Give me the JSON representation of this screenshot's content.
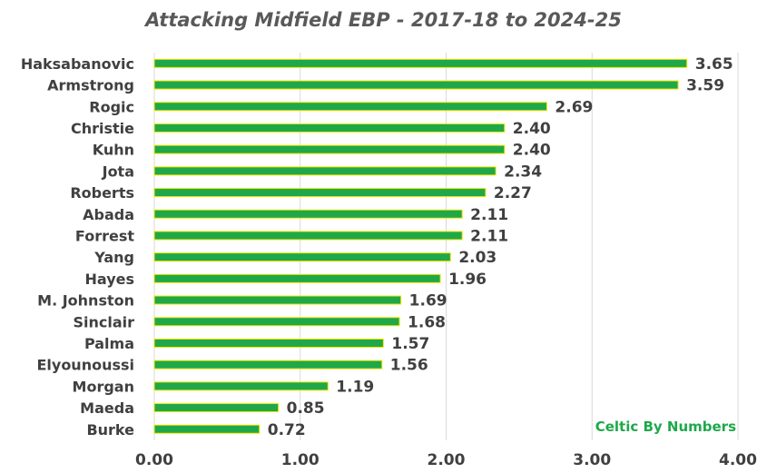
{
  "chart_data": {
    "type": "bar",
    "orientation": "horizontal",
    "title": "Attacking Midfield EBP - 2017-18 to 2024-25",
    "categories": [
      "Haksabanovic",
      "Armstrong",
      "Rogic",
      "Christie",
      "Kuhn",
      "Jota",
      "Roberts",
      "Abada",
      "Forrest",
      "Yang",
      "Hayes",
      "M. Johnston",
      "Sinclair",
      "Palma",
      "Elyounoussi",
      "Morgan",
      "Maeda",
      "Burke"
    ],
    "values": [
      3.65,
      3.59,
      2.69,
      2.4,
      2.4,
      2.34,
      2.27,
      2.11,
      2.11,
      2.03,
      1.96,
      1.69,
      1.68,
      1.57,
      1.56,
      1.19,
      0.85,
      0.72
    ],
    "data_labels": [
      "3.65",
      "3.59",
      "2.69",
      "2.40",
      "2.40",
      "2.34",
      "2.27",
      "2.11",
      "2.11",
      "2.03",
      "1.96",
      "1.69",
      "1.68",
      "1.57",
      "1.56",
      "1.19",
      "0.85",
      "0.72"
    ],
    "xticks": [
      "0.00",
      "1.00",
      "2.00",
      "3.00",
      "4.00"
    ],
    "xlim": [
      0,
      4
    ],
    "xlabel": "",
    "ylabel": "",
    "grid": "vertical",
    "legend": "none"
  },
  "watermark": "Celtic By Numbers",
  "colors": {
    "bar_fill": "#1EA84A",
    "bar_stroke": "#F2E600",
    "text": "#404040",
    "title": "#595959",
    "grid": "#D9D9D9",
    "watermark": "#1EA84A"
  }
}
